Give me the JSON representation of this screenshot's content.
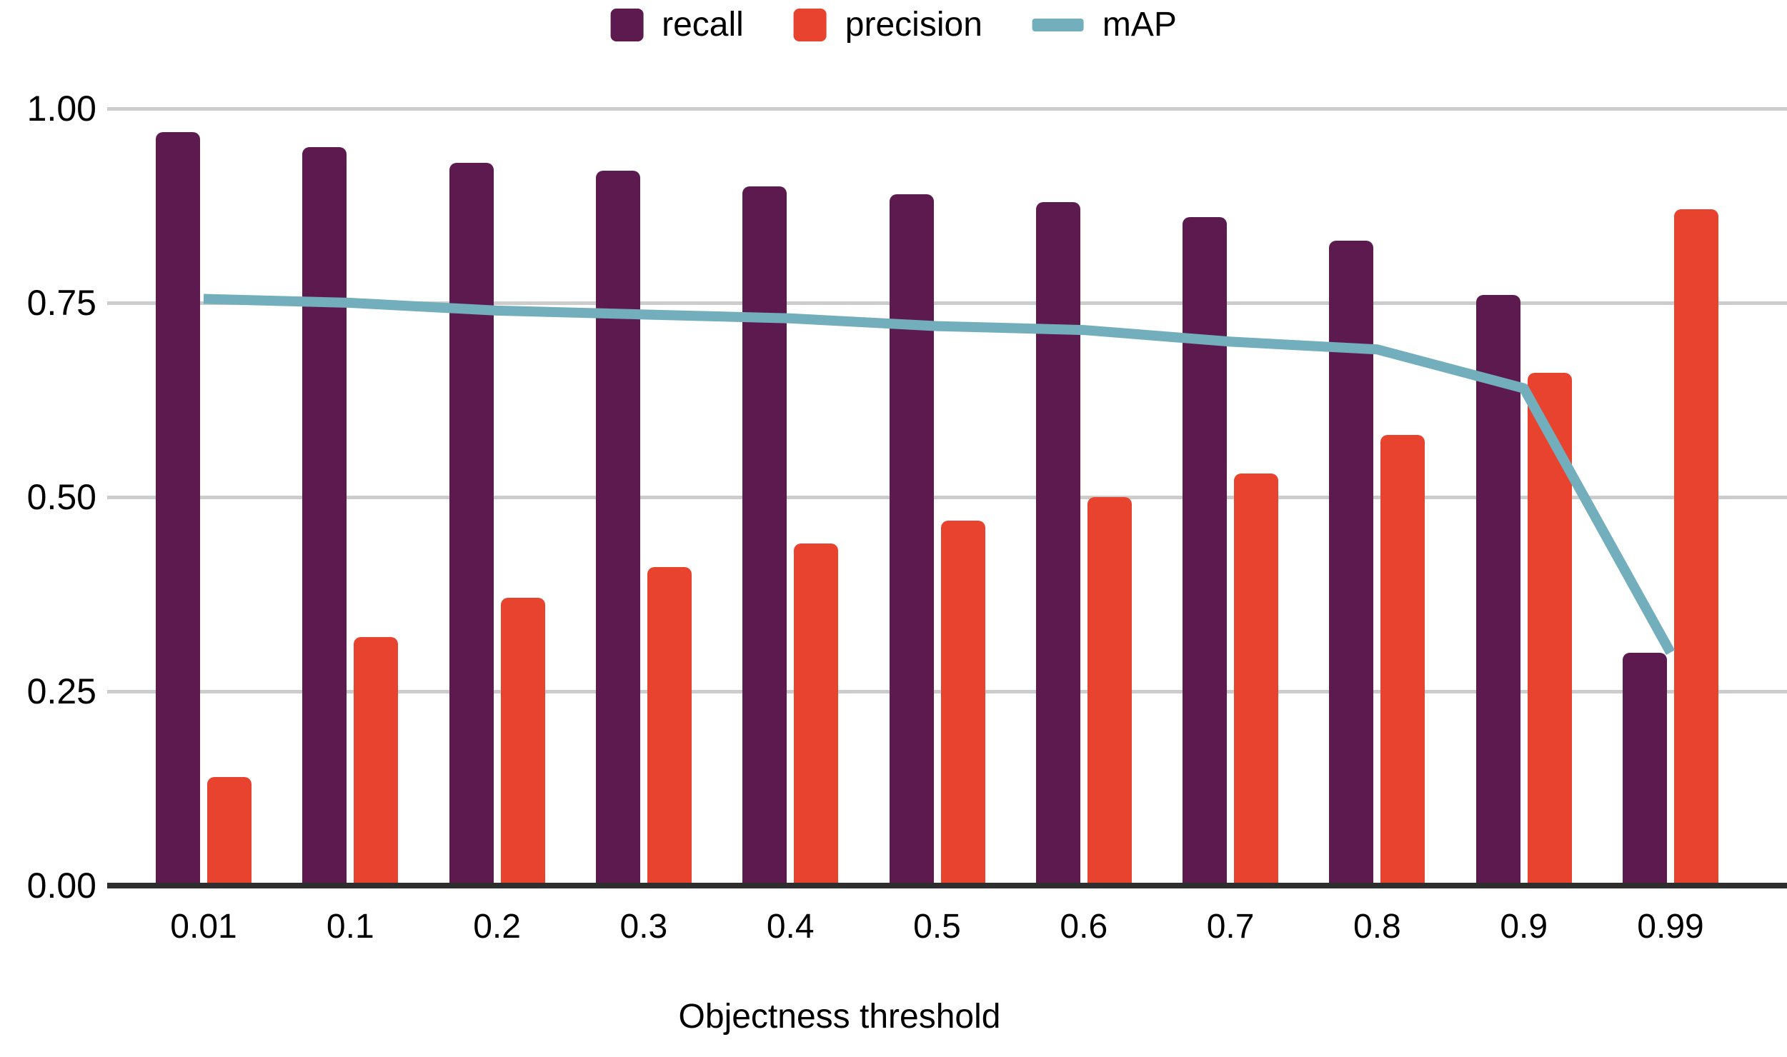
{
  "chart_data": {
    "type": "bar",
    "subtype": "grouped bars with line overlay",
    "title": "",
    "xlabel": "Objectness threshold",
    "ylabel": "",
    "ylim": [
      0,
      1
    ],
    "grid": "horizontal",
    "legend_position": "top-center",
    "categories": [
      "0.01",
      "0.1",
      "0.2",
      "0.3",
      "0.4",
      "0.5",
      "0.6",
      "0.7",
      "0.8",
      "0.9",
      "0.99"
    ],
    "yticks": [
      {
        "label": "1.00",
        "value": 1.0
      },
      {
        "label": "0.75",
        "value": 0.75
      },
      {
        "label": "0.50",
        "value": 0.5
      },
      {
        "label": "0.25",
        "value": 0.25
      },
      {
        "label": "0.00",
        "value": 0.0
      }
    ],
    "series": [
      {
        "name": "recall",
        "kind": "bar",
        "color": "#5c1a4e",
        "values": [
          0.97,
          0.95,
          0.93,
          0.92,
          0.9,
          0.89,
          0.88,
          0.86,
          0.83,
          0.76,
          0.3
        ]
      },
      {
        "name": "precision",
        "kind": "bar",
        "color": "#e8432e",
        "values": [
          0.14,
          0.32,
          0.37,
          0.41,
          0.44,
          0.47,
          0.5,
          0.53,
          0.58,
          0.66,
          0.87
        ]
      },
      {
        "name": "mAP",
        "kind": "line",
        "color": "#72aebb",
        "values": [
          0.755,
          0.75,
          0.74,
          0.735,
          0.73,
          0.72,
          0.715,
          0.7,
          0.69,
          0.64,
          0.3
        ]
      }
    ],
    "colors": {
      "grid": "#cccccc",
      "axis": "#2e2e2e",
      "text": "#000000"
    }
  }
}
